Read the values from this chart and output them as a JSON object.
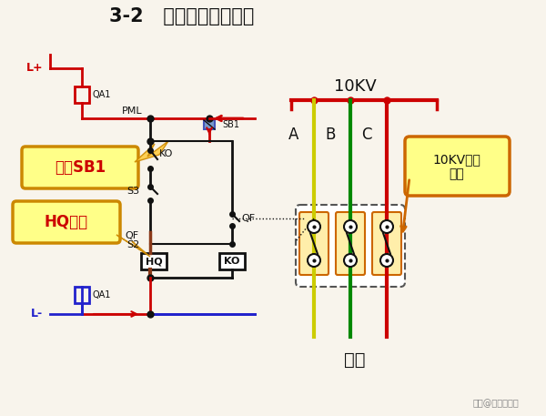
{
  "title": "3-2   防止开关跳跃原理",
  "bg_color": "#f8f4ec",
  "RED": "#cc0000",
  "BLUE": "#2222cc",
  "BLACK": "#111111",
  "BROWN": "#8B3A1A",
  "DARK_RED": "#bb0000",
  "label_Lp": "L+",
  "label_Lm": "L-",
  "label_QA1t": "QA1",
  "label_QA1b": "QA1",
  "label_PML": "PML",
  "label_SB1": "SB1",
  "label_KO": "KO",
  "label_S3": "S3",
  "label_QF": "QF",
  "label_S2": "S2",
  "label_HQ": "HQ",
  "label_KO2": "KO",
  "label_10KV": "10KV",
  "label_A": "A",
  "label_B": "B",
  "label_C": "C",
  "label_load": "负载",
  "label_vacuum": "10KV真空\n开关",
  "label_press_SB1": "按下SB1",
  "label_HQ_powered": "HQ得电",
  "watermark": "头条@兴福园电力",
  "color_A": "#cccc00",
  "color_B": "#008800",
  "color_C": "#cc0000"
}
